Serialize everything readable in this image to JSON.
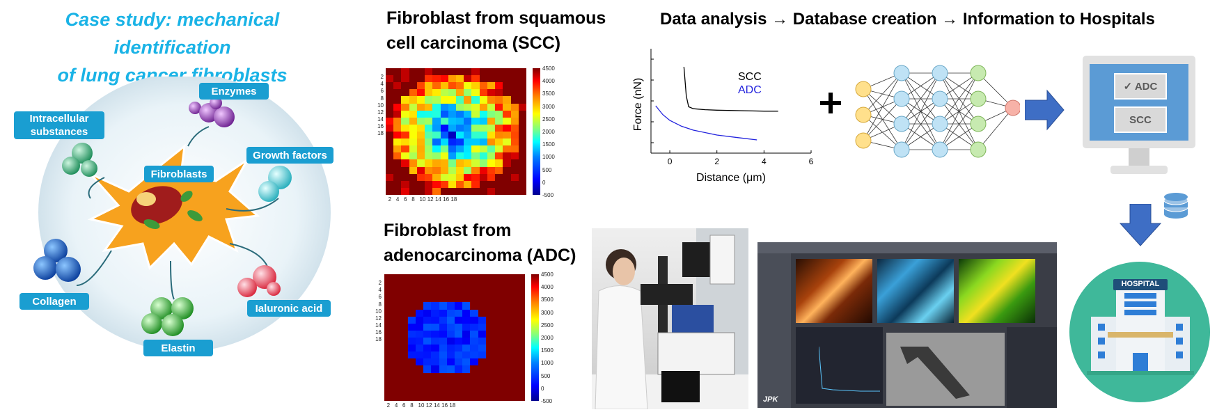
{
  "header": {
    "title_line1": "Case study: mechanical identification",
    "title_line2": "of lung cancer fibroblasts",
    "pipeline": "Data analysis → Database creation → Information to Hospitals"
  },
  "cell_diagram": {
    "center_label": "Fibroblasts",
    "labels": {
      "enzymes": "Enzymes",
      "intracellular": "Intracellular substances",
      "growth": "Growth factors",
      "collagen": "Collagen",
      "ialuronic": "Ialuronic acid",
      "elastin": "Elastin"
    }
  },
  "scc": {
    "title_line1": "Fibroblast from squamous",
    "title_line2": "cell carcinoma (SCC)"
  },
  "adc": {
    "title_line1": "Fibroblast from",
    "title_line2": "adenocarcinoma (ADC)"
  },
  "heatmap": {
    "y_ticks": [
      "2",
      "4",
      "6",
      "8",
      "10",
      "12",
      "14",
      "16",
      "18"
    ],
    "x_ticks": [
      "2",
      "4",
      "6",
      "8",
      "10",
      "12",
      "14",
      "16",
      "18"
    ],
    "colorbar_ticks": [
      "4500",
      "4000",
      "3500",
      "3000",
      "2500",
      "2000",
      "1500",
      "1000",
      "500",
      "0",
      "-500"
    ]
  },
  "chart_data": {
    "type": "line",
    "title": "",
    "xlabel": "Distance (μm)",
    "ylabel": "Force (nN)",
    "xlim": [
      -0.8,
      6
    ],
    "x_ticks": [
      "0",
      "2",
      "4",
      "6"
    ],
    "series": [
      {
        "name": "SCC",
        "color": "#000000",
        "x": [
          0.6,
          0.65,
          0.7,
          0.8,
          1.0,
          1.5,
          2.0,
          3.0,
          4.0,
          4.6
        ],
        "y": [
          0.85,
          0.7,
          0.55,
          0.44,
          0.42,
          0.41,
          0.405,
          0.4,
          0.395,
          0.395
        ]
      },
      {
        "name": "ADC",
        "color": "#2222dd",
        "x": [
          -0.6,
          -0.3,
          0.0,
          0.5,
          1.0,
          2.0,
          3.0,
          3.7
        ],
        "y": [
          0.45,
          0.36,
          0.3,
          0.24,
          0.2,
          0.15,
          0.12,
          0.1
        ]
      }
    ]
  },
  "monitor": {
    "adc_label": "✓ ADC",
    "scc_label": "SCC"
  },
  "hospital": {
    "sign": "HOSPITAL"
  },
  "software": {
    "logo": "JPK"
  }
}
